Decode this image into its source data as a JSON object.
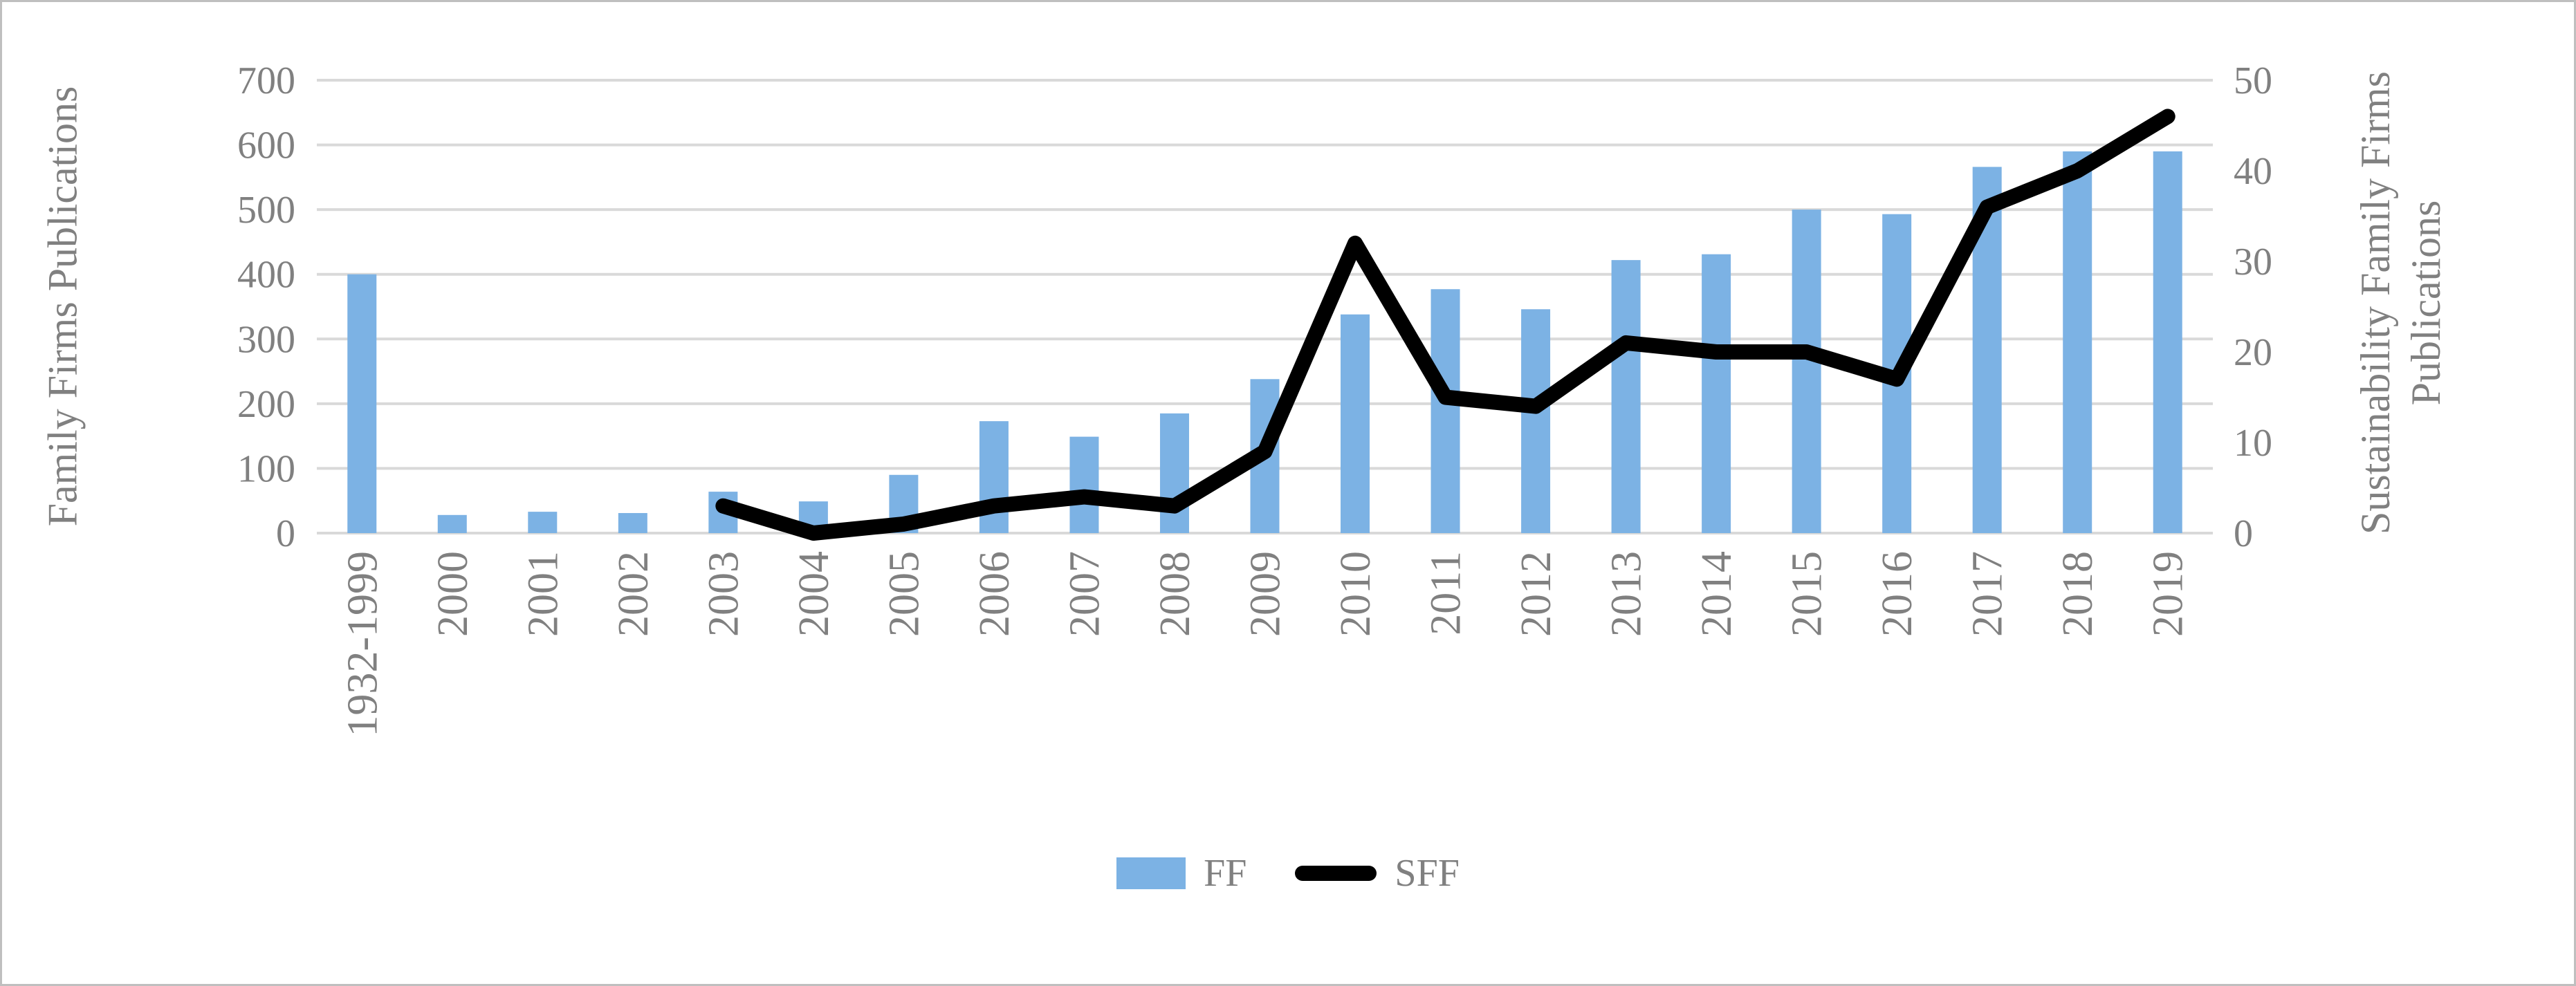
{
  "figure": {
    "background": "#FFFFFF",
    "border_color": "#BFBFBF"
  },
  "chart_data": {
    "type": "bar",
    "subtype": "combo-bar-line-dual-axis",
    "title": "",
    "grid": "horizontal-on",
    "grid_color": "#D9D9D9",
    "text_color": "#808080",
    "legend_position": "bottom",
    "categories": [
      "1932-1999",
      "2000",
      "2001",
      "2002",
      "2003",
      "2004",
      "2005",
      "2006",
      "2007",
      "2008",
      "2009",
      "2010",
      "2011",
      "2012",
      "2013",
      "2014",
      "2015",
      "2016",
      "2017",
      "2018",
      "2019"
    ],
    "series": [
      {
        "name": "FF",
        "type": "bar",
        "axis": "left",
        "color": "#7CB2E4",
        "values": [
          400,
          28,
          33,
          31,
          64,
          49,
          90,
          173,
          149,
          185,
          238,
          338,
          377,
          346,
          422,
          431,
          500,
          493,
          566,
          590,
          590
        ]
      },
      {
        "name": "SFF",
        "type": "line",
        "axis": "right",
        "color": "#000000",
        "values": [
          null,
          null,
          null,
          null,
          3,
          0,
          1,
          3,
          4,
          3,
          9,
          32,
          15,
          14,
          21,
          20,
          20,
          17,
          36,
          40,
          46
        ]
      }
    ],
    "axes": {
      "left": {
        "title": "Family Firms Publications",
        "min": 0,
        "max": 700,
        "step": 100,
        "tick_labels": [
          "0",
          "100",
          "200",
          "300",
          "400",
          "500",
          "600",
          "700"
        ]
      },
      "right": {
        "title_lines": [
          "Sustainability Family Firms",
          "Publications"
        ],
        "min": 0,
        "max": 50,
        "step": 10,
        "tick_labels": [
          "0",
          "10",
          "20",
          "30",
          "40",
          "50"
        ]
      },
      "x": {
        "label_rotation": -90
      }
    },
    "legend": [
      {
        "label": "FF",
        "swatch": "bar"
      },
      {
        "label": "SFF",
        "swatch": "line"
      }
    ]
  }
}
